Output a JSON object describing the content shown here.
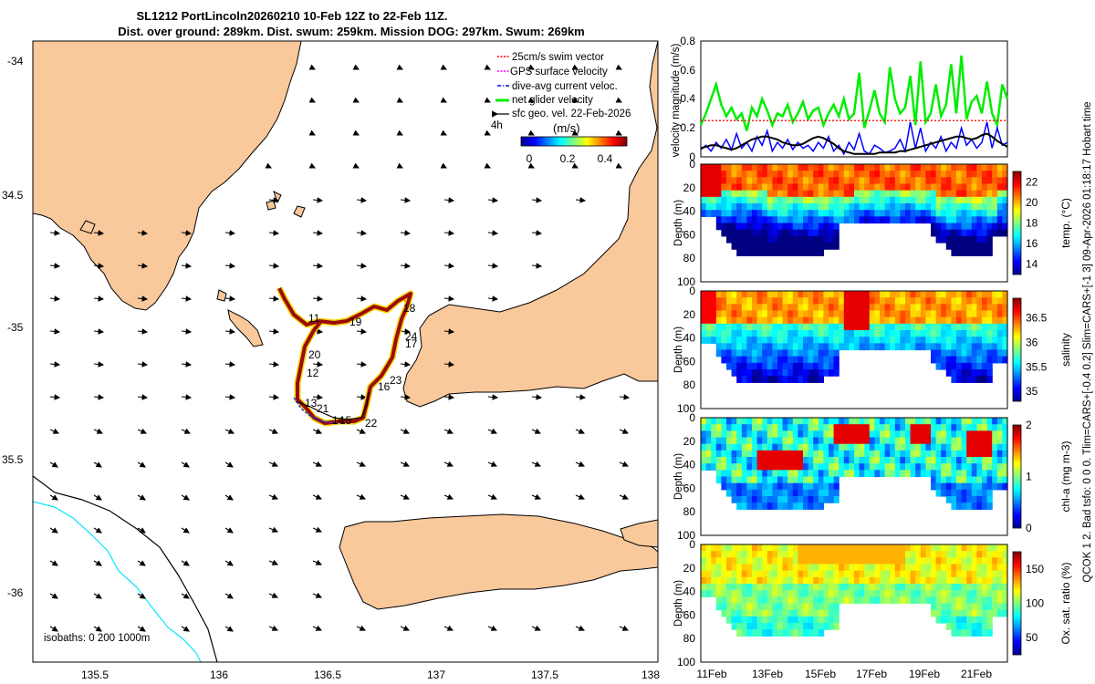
{
  "title": {
    "line1": "SL1212 PortLincoln20260210 10-Feb 12Z to 22-Feb 11Z.",
    "line2": "Dist. over ground: 289km. Dist. swum: 259km. Mission DOG: 297km. Swum: 269km"
  },
  "side_text": "QCOK 1  2. Bad tsfo: 0  0  0. Tlim=CARS+[-0.4 0.2] Slim=CARS+[-1 3] 09-Apr-2026 01:18:17 Hobart time",
  "map": {
    "lon_ticks": [
      "135.5",
      "136",
      "136.5",
      "137",
      "137.5",
      "138"
    ],
    "lat_ticks": [
      "-34",
      "34.5",
      "-35",
      "35.5",
      "-36"
    ],
    "legend": [
      {
        "label": "25cm/s swim vector",
        "color": "#ff0000",
        "style": "dotted"
      },
      {
        "label": "GPS surface velocity",
        "color": "#ff00ff",
        "style": "dotted"
      },
      {
        "label": "dive-avg current veloc.",
        "color": "#0000ff",
        "style": "dashdot"
      },
      {
        "label": "net glider velocity",
        "color": "#00ee00",
        "style": "solid"
      },
      {
        "label": "sfc geo. vel. 22-Feb-2026",
        "color": "#000000",
        "style": "arrow"
      }
    ],
    "colorbar": {
      "label": "(m/s)",
      "ticks": [
        "0",
        "0.2",
        "0.4"
      ],
      "note": "4h"
    },
    "isobaths_label": "isobaths: 0   200  1000m",
    "day_labels": [
      "11",
      "19",
      "18",
      "24",
      "17",
      "20",
      "12",
      "23",
      "16",
      "13",
      "21",
      "14",
      "15",
      "22"
    ]
  },
  "chart_data": [
    {
      "type": "line",
      "title": "",
      "xlabel": "",
      "ylabel": "velocity magnitude (m/s)",
      "ylim": [
        0,
        0.8
      ],
      "yticks": [
        "0",
        "0.2",
        "0.4",
        "0.6",
        "0.8"
      ],
      "x": [
        0,
        1,
        2,
        3,
        4,
        5,
        6,
        7,
        8,
        9,
        10,
        11,
        12,
        13,
        14,
        15,
        16,
        17,
        18,
        19,
        20,
        21,
        22,
        23,
        24,
        25,
        26,
        27,
        28,
        29,
        30,
        31,
        32,
        33,
        34,
        35,
        36,
        37,
        38,
        39,
        40,
        41,
        42,
        43,
        44,
        45,
        46,
        47,
        48,
        49,
        50,
        51,
        52,
        53,
        54,
        55,
        56,
        57,
        58,
        59,
        60
      ],
      "series": [
        {
          "name": "net glider velocity",
          "color": "#00ee00",
          "values": [
            0.22,
            0.3,
            0.4,
            0.5,
            0.36,
            0.28,
            0.34,
            0.26,
            0.3,
            0.18,
            0.34,
            0.28,
            0.4,
            0.32,
            0.22,
            0.3,
            0.28,
            0.36,
            0.24,
            0.3,
            0.38,
            0.26,
            0.32,
            0.34,
            0.22,
            0.3,
            0.36,
            0.28,
            0.4,
            0.26,
            0.3,
            0.58,
            0.2,
            0.32,
            0.46,
            0.3,
            0.24,
            0.62,
            0.4,
            0.3,
            0.34,
            0.56,
            0.22,
            0.66,
            0.24,
            0.3,
            0.5,
            0.28,
            0.36,
            0.64,
            0.3,
            0.7,
            0.26,
            0.38,
            0.42,
            0.3,
            0.52,
            0.3,
            0.22,
            0.5,
            0.4
          ]
        },
        {
          "name": "dive-avg current veloc.",
          "color": "#0000ff",
          "values": [
            0.05,
            0.08,
            0.04,
            0.1,
            0.06,
            0.12,
            0.05,
            0.16,
            0.06,
            0.1,
            0.04,
            0.14,
            0.08,
            0.18,
            0.04,
            0.1,
            0.06,
            0.12,
            0.05,
            0.1,
            0.06,
            0.08,
            0.04,
            0.1,
            0.06,
            0.14,
            0.04,
            0.08,
            0.02,
            0.1,
            0.05,
            0.16,
            0.04,
            0.02,
            0.08,
            0.06,
            0.03,
            0.04,
            0.06,
            0.12,
            0.04,
            0.24,
            0.06,
            0.2,
            0.04,
            0.1,
            0.06,
            0.14,
            0.04,
            0.1,
            0.06,
            0.2,
            0.08,
            0.12,
            0.06,
            0.1,
            0.24,
            0.06,
            0.2,
            0.08,
            0.1
          ]
        },
        {
          "name": "25cm/s swim vector",
          "color": "#ff2020",
          "values": [
            0.25,
            0.25,
            0.25,
            0.25,
            0.25,
            0.25,
            0.25,
            0.25,
            0.25,
            0.25,
            0.25,
            0.25,
            0.25,
            0.25,
            0.25,
            0.25,
            0.25,
            0.25,
            0.25,
            0.25,
            0.25,
            0.25,
            0.25,
            0.25,
            0.25,
            0.25,
            0.25,
            0.25,
            0.25,
            0.25,
            0.25,
            0.25,
            0.25,
            0.25,
            0.25,
            0.25,
            0.25,
            0.25,
            0.25,
            0.25,
            0.25,
            0.25,
            0.25,
            0.25,
            0.25,
            0.25,
            0.25,
            0.25,
            0.25,
            0.25,
            0.25,
            0.25,
            0.25,
            0.25,
            0.25,
            0.25,
            0.25,
            0.25,
            0.25,
            0.25,
            0.25
          ]
        },
        {
          "name": "sfc geo. vel.",
          "color": "#000000",
          "values": [
            0.06,
            0.07,
            0.08,
            0.08,
            0.07,
            0.06,
            0.05,
            0.06,
            0.08,
            0.1,
            0.12,
            0.13,
            0.14,
            0.14,
            0.13,
            0.12,
            0.1,
            0.09,
            0.08,
            0.08,
            0.09,
            0.11,
            0.13,
            0.14,
            0.13,
            0.11,
            0.09,
            0.06,
            0.04,
            0.03,
            0.02,
            0.02,
            0.02,
            0.02,
            0.02,
            0.03,
            0.03,
            0.03,
            0.03,
            0.04,
            0.04,
            0.05,
            0.06,
            0.07,
            0.08,
            0.09,
            0.1,
            0.11,
            0.12,
            0.13,
            0.14,
            0.14,
            0.13,
            0.12,
            0.13,
            0.15,
            0.16,
            0.14,
            0.11,
            0.09,
            0.07
          ]
        }
      ]
    },
    {
      "type": "heatmap",
      "ylabel": "Depth (m)",
      "colorbar_label": "temp. (°C)",
      "yticks": [
        "0",
        "20",
        "40",
        "60",
        "80",
        "100"
      ],
      "cbar_ticks": [
        "14",
        "16",
        "18",
        "20",
        "22"
      ],
      "clim": [
        13,
        23
      ]
    },
    {
      "type": "heatmap",
      "ylabel": "Depth (m)",
      "colorbar_label": "salinity",
      "yticks": [
        "0",
        "20",
        "40",
        "60",
        "80",
        "100"
      ],
      "cbar_ticks": [
        "35",
        "35.5",
        "36",
        "36.5"
      ],
      "clim": [
        34.8,
        36.9
      ]
    },
    {
      "type": "heatmap",
      "ylabel": "Depth (m)",
      "colorbar_label": "chl-a (mg m-3)",
      "yticks": [
        "0",
        "20",
        "40",
        "60",
        "80",
        "100"
      ],
      "cbar_ticks": [
        "0",
        "1",
        "2"
      ],
      "clim": [
        0,
        2
      ]
    },
    {
      "type": "heatmap",
      "ylabel": "Depth (m)",
      "colorbar_label": "Ox. sat. ratio (%)",
      "yticks": [
        "0",
        "20",
        "40",
        "60",
        "80",
        "100"
      ],
      "cbar_ticks": [
        "50",
        "100",
        "150"
      ],
      "clim": [
        25,
        175
      ],
      "xticks": [
        "11Feb",
        "13Feb",
        "15Feb",
        "17Feb",
        "19Feb",
        "21Feb"
      ]
    }
  ],
  "colors": {
    "land": "#f9c89b",
    "isobath_200": "#000000",
    "isobath_1000": "#00e5ff"
  }
}
